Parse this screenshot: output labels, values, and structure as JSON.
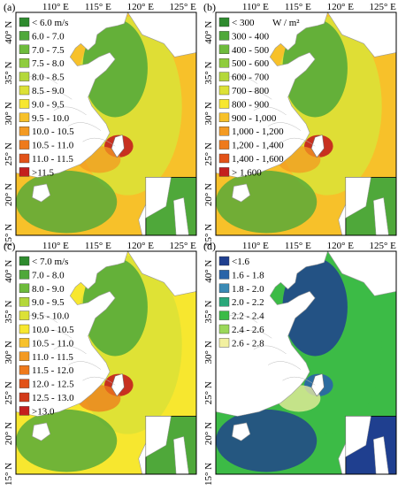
{
  "figure": {
    "panels": [
      {
        "letter": "(a)",
        "lon_labels": [
          "110° E",
          "115° E",
          "120° E",
          "125° E"
        ],
        "lat_labels": [
          "40° N",
          "35° N",
          "30° N",
          "25° N",
          "20° N",
          "15° N"
        ],
        "legend_title": "",
        "legend": [
          {
            "label": "< 6.0 m/s",
            "color": "#2e8b2e"
          },
          {
            "label": "6.0 - 7.0",
            "color": "#4fa83a"
          },
          {
            "label": "7.0 - 7.5",
            "color": "#6dbb3c"
          },
          {
            "label": "7.5 - 8.0",
            "color": "#8fcc3d"
          },
          {
            "label": "8.0 - 8.5",
            "color": "#b4d83a"
          },
          {
            "label": "8.5 - 9.0",
            "color": "#dce136"
          },
          {
            "label": "9.0 - 9.5",
            "color": "#f7e72f"
          },
          {
            "label": "9.5 - 10.0",
            "color": "#f7c12a"
          },
          {
            "label": "10.0 - 10.5",
            "color": "#f39a22"
          },
          {
            "label": "10.5 - 11.0",
            "color": "#ee7a1c"
          },
          {
            "label": "11.0 - 11.5",
            "color": "#e25218"
          },
          {
            "label": ">11.5",
            "color": "#c41e1e"
          }
        ],
        "map_style": {
          "land": "#ffffff",
          "sea_shelf": "#4fa83a",
          "sea_mid": "#dce136",
          "sea_open": "#f7c12a",
          "hotspot": "#c41e1e"
        }
      },
      {
        "letter": "(b)",
        "lon_labels": [
          "110° E",
          "115° E",
          "120° E",
          "125° E"
        ],
        "lat_labels": [
          "40° N",
          "35° N",
          "30° N",
          "25° N",
          "20° N",
          "15° N"
        ],
        "legend_title": "W / m²",
        "legend": [
          {
            "label": "< 300",
            "color": "#2e8b2e"
          },
          {
            "label": "300 - 400",
            "color": "#4fa83a"
          },
          {
            "label": "400 - 500",
            "color": "#6dbb3c"
          },
          {
            "label": "500 - 600",
            "color": "#8fcc3d"
          },
          {
            "label": "600 - 700",
            "color": "#b4d83a"
          },
          {
            "label": "700 - 800",
            "color": "#dce136"
          },
          {
            "label": "800 - 900",
            "color": "#f7e72f"
          },
          {
            "label": "900 - 1,000",
            "color": "#f7c12a"
          },
          {
            "label": "1,000 - 1,200",
            "color": "#f39a22"
          },
          {
            "label": "1,200 - 1,400",
            "color": "#ee7a1c"
          },
          {
            "label": "1,400 - 1,600",
            "color": "#e25218"
          },
          {
            "label": "> 1,600",
            "color": "#c41e1e"
          }
        ],
        "map_style": {
          "land": "#ffffff",
          "sea_shelf": "#4fa83a",
          "sea_mid": "#dce136",
          "sea_open": "#f7c12a",
          "hotspot": "#c41e1e"
        }
      },
      {
        "letter": "(c)",
        "lon_labels": [
          "110° E",
          "115° E",
          "120° E",
          "125° E"
        ],
        "lat_labels": [
          "40° N",
          "35° N",
          "30° N",
          "25° N",
          "20° N",
          "15° N"
        ],
        "legend_title": "",
        "legend": [
          {
            "label": "< 7.0 m/s",
            "color": "#2e8b2e"
          },
          {
            "label": "7.0 - 8.0",
            "color": "#4fa83a"
          },
          {
            "label": "8.0 - 9.0",
            "color": "#6dbb3c"
          },
          {
            "label": "9.0 - 9.5",
            "color": "#b4d83a"
          },
          {
            "label": "9.5 - 10.0",
            "color": "#dce136"
          },
          {
            "label": "10.0 - 10.5",
            "color": "#f7e72f"
          },
          {
            "label": "10.5 - 11.0",
            "color": "#f7c12a"
          },
          {
            "label": "11.0 - 11.5",
            "color": "#f39a22"
          },
          {
            "label": "11.5 - 12.0",
            "color": "#ee7a1c"
          },
          {
            "label": "12.0 - 12.5",
            "color": "#e25218"
          },
          {
            "label": "12.5 - 13.0",
            "color": "#d23a1a"
          },
          {
            "label": ">13.0",
            "color": "#c41e1e"
          }
        ],
        "map_style": {
          "land": "#ffffff",
          "sea_shelf": "#4fa83a",
          "sea_mid": "#dce136",
          "sea_open": "#f7e72f",
          "hotspot": "#c41e1e"
        }
      },
      {
        "letter": "(d)",
        "lon_labels": [
          "110° E",
          "115° E",
          "120° E",
          "125° E"
        ],
        "lat_labels": [
          "40° N",
          "35° N",
          "30° N",
          "25° N",
          "20° N",
          "15° N"
        ],
        "legend_title": "",
        "legend": [
          {
            "label": "<1.6",
            "color": "#1f3f8f"
          },
          {
            "label": "1.6 - 1.8",
            "color": "#2a64a8"
          },
          {
            "label": "1.8 - 2.0",
            "color": "#3a8ab5"
          },
          {
            "label": "2.0 - 2.2",
            "color": "#2aa87a"
          },
          {
            "label": "2.2 - 2.4",
            "color": "#3cbb46"
          },
          {
            "label": "2.4 - 2.6",
            "color": "#9bd85a"
          },
          {
            "label": "2.6 - 2.8",
            "color": "#f2f0a0"
          }
        ],
        "map_style": {
          "land": "#ffffff",
          "sea_shelf": "#1f3f8f",
          "sea_mid": "#3cbb46",
          "sea_open": "#3cbb46",
          "hotspot": "#2a64a8"
        }
      }
    ]
  }
}
